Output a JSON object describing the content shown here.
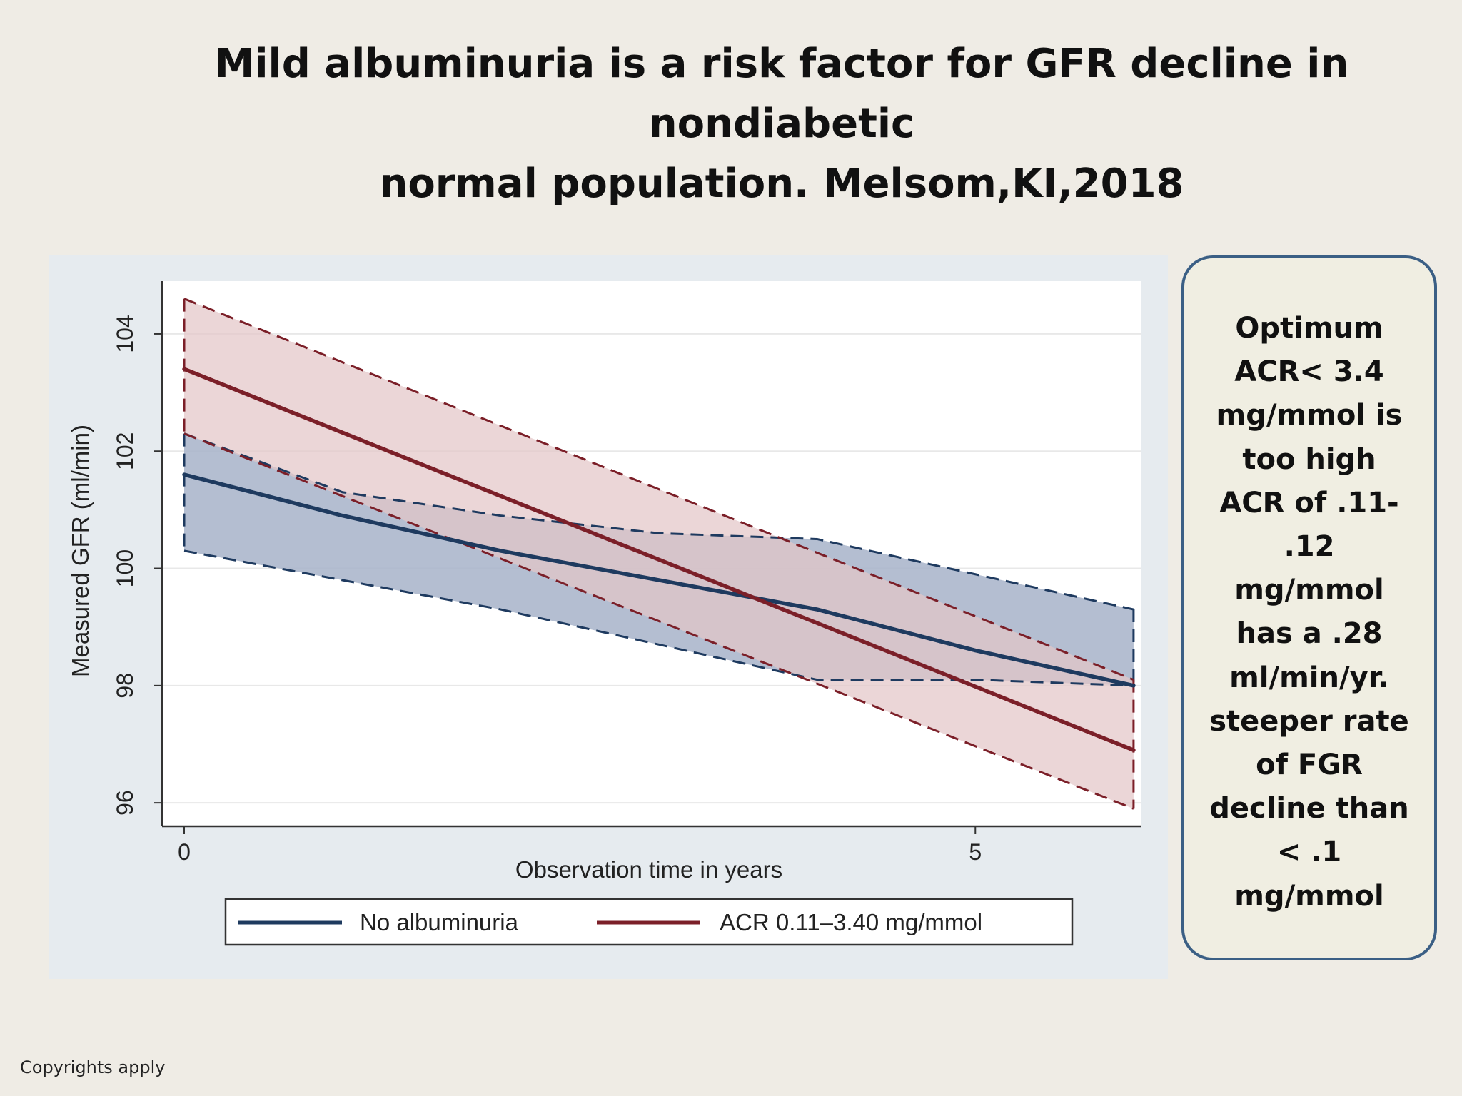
{
  "title": {
    "line1": "Mild albuminuria is a risk factor for GFR decline in nondiabetic",
    "line2": "normal population. Melsom,KI,2018"
  },
  "note": {
    "lines": [
      "Optimum",
      "ACR< 3.4",
      "mg/mmol is",
      "too high",
      "ACR of .11-",
      ".12",
      "mg/mmol",
      "has a .28",
      "ml/min/yr.",
      "steeper rate",
      "of FGR",
      "decline than",
      "< .1",
      "mg/mmol"
    ]
  },
  "copyright": "Copyrights apply",
  "colors": {
    "navy": "#1e3a5f",
    "maroon": "#7b1f28",
    "band_navy": "#a7b3c9",
    "band_maroon": "#e3c6c7",
    "plot_bg": "#ffffff",
    "panel_bg": "#e6ebef"
  },
  "chart_data": {
    "type": "line",
    "xlabel": "Observation time in years",
    "ylabel": "Measured GFR (ml/min)",
    "xlim": [
      0,
      6.05
    ],
    "ylim": [
      95.6,
      104.9
    ],
    "x_ticks": [
      0,
      5
    ],
    "y_ticks": [
      96,
      98,
      100,
      102,
      104
    ],
    "grid": true,
    "legend_position": "bottom",
    "series": [
      {
        "name": "No albuminuria",
        "color": "#1e3a5f",
        "x": [
          0,
          1,
          2,
          3,
          4,
          5,
          6
        ],
        "y": [
          101.6,
          100.9,
          100.3,
          99.8,
          99.3,
          98.6,
          98.0
        ],
        "ci_lower": [
          100.3,
          99.8,
          99.3,
          98.7,
          98.1,
          98.1,
          98.0
        ],
        "ci_upper": [
          102.3,
          101.3,
          100.9,
          100.6,
          100.5,
          99.9,
          99.3
        ]
      },
      {
        "name": "ACR 0.11–3.40 mg/mmol",
        "color": "#7b1f28",
        "x": [
          0,
          6
        ],
        "y": [
          103.4,
          96.9
        ],
        "ci_lower": [
          102.3,
          95.9
        ],
        "ci_upper": [
          104.6,
          98.1
        ]
      }
    ]
  }
}
